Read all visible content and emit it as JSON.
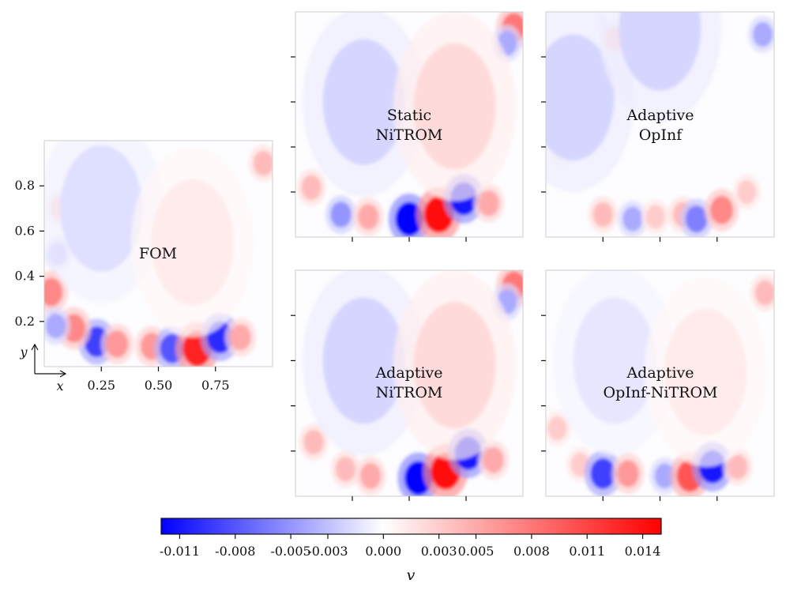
{
  "chart_data": {
    "type": "heatmap",
    "field_variable": "v",
    "colormap": "bwr",
    "colorbar": {
      "label": "v",
      "range": [
        -0.012,
        0.015
      ],
      "ticks": [
        "-0.011",
        "-0.008",
        "-0.005",
        "-0.003",
        "0.000",
        "0.003",
        "0.005",
        "0.008",
        "0.011",
        "0.014"
      ],
      "tick_values": [
        -0.011,
        -0.008,
        -0.005,
        -0.003,
        0.0,
        0.003,
        0.005,
        0.008,
        0.011,
        0.014
      ]
    },
    "axes": {
      "x_label": "x",
      "y_label": "y",
      "x_range": [
        0,
        1
      ],
      "y_range": [
        0,
        1
      ],
      "x_ticks": [
        "0.25",
        "0.50",
        "0.75"
      ],
      "x_tick_values": [
        0.25,
        0.5,
        0.75
      ],
      "y_ticks": [
        "0.2",
        "0.4",
        "0.6",
        "0.8"
      ],
      "y_tick_values": [
        0.2,
        0.4,
        0.6,
        0.8
      ]
    },
    "panels": [
      {
        "id": "fom",
        "title_lines": [
          "FOM"
        ],
        "blobs": [
          {
            "x": 0.23,
            "y": 0.11,
            "v": -0.009
          },
          {
            "x": 0.32,
            "y": 0.1,
            "v": 0.006
          },
          {
            "x": 0.13,
            "y": 0.17,
            "v": 0.007
          },
          {
            "x": 0.47,
            "y": 0.09,
            "v": 0.006
          },
          {
            "x": 0.56,
            "y": 0.08,
            "v": -0.008
          },
          {
            "x": 0.67,
            "y": 0.08,
            "v": 0.013
          },
          {
            "x": 0.77,
            "y": 0.13,
            "v": -0.01
          },
          {
            "x": 0.86,
            "y": 0.13,
            "v": 0.005
          },
          {
            "x": 0.03,
            "y": 0.33,
            "v": 0.007
          },
          {
            "x": 0.05,
            "y": 0.18,
            "v": -0.004
          },
          {
            "x": 0.06,
            "y": 0.5,
            "v": -0.003
          },
          {
            "x": 0.07,
            "y": 0.7,
            "v": 0.003
          },
          {
            "x": 0.96,
            "y": 0.9,
            "v": 0.004
          },
          {
            "x": 0.25,
            "y": 0.7,
            "v": -0.0015
          },
          {
            "x": 0.65,
            "y": 0.55,
            "v": 0.0012
          }
        ]
      },
      {
        "id": "static-nitrom",
        "title_lines": [
          "Static",
          "NiTROM"
        ],
        "blobs": [
          {
            "x": 0.2,
            "y": 0.1,
            "v": -0.005
          },
          {
            "x": 0.32,
            "y": 0.09,
            "v": 0.005
          },
          {
            "x": 0.5,
            "y": 0.08,
            "v": -0.012
          },
          {
            "x": 0.63,
            "y": 0.1,
            "v": 0.014
          },
          {
            "x": 0.74,
            "y": 0.17,
            "v": -0.011
          },
          {
            "x": 0.85,
            "y": 0.15,
            "v": 0.005
          },
          {
            "x": 0.07,
            "y": 0.22,
            "v": 0.004
          },
          {
            "x": 0.96,
            "y": 0.93,
            "v": 0.008
          },
          {
            "x": 0.93,
            "y": 0.86,
            "v": -0.004
          },
          {
            "x": 0.3,
            "y": 0.6,
            "v": -0.002
          },
          {
            "x": 0.7,
            "y": 0.58,
            "v": 0.0022
          }
        ]
      },
      {
        "id": "adaptive-opinf",
        "title_lines": [
          "Adaptive",
          "OpInf"
        ],
        "blobs": [
          {
            "x": 0.25,
            "y": 0.1,
            "v": 0.004
          },
          {
            "x": 0.38,
            "y": 0.08,
            "v": -0.004
          },
          {
            "x": 0.48,
            "y": 0.09,
            "v": 0.003
          },
          {
            "x": 0.6,
            "y": 0.1,
            "v": 0.004
          },
          {
            "x": 0.66,
            "y": 0.08,
            "v": -0.006
          },
          {
            "x": 0.77,
            "y": 0.12,
            "v": 0.007
          },
          {
            "x": 0.88,
            "y": 0.2,
            "v": 0.003
          },
          {
            "x": 0.08,
            "y": 0.4,
            "v": 0.003
          },
          {
            "x": 0.12,
            "y": 0.62,
            "v": -0.002
          },
          {
            "x": 0.3,
            "y": 0.88,
            "v": 0.003
          },
          {
            "x": 0.5,
            "y": 0.93,
            "v": -0.002
          },
          {
            "x": 0.95,
            "y": 0.9,
            "v": -0.004
          }
        ]
      },
      {
        "id": "adaptive-nitrom",
        "title_lines": [
          "Adaptive",
          "NiTROM"
        ],
        "blobs": [
          {
            "x": 0.22,
            "y": 0.12,
            "v": 0.004
          },
          {
            "x": 0.33,
            "y": 0.09,
            "v": 0.005
          },
          {
            "x": 0.54,
            "y": 0.08,
            "v": -0.012
          },
          {
            "x": 0.66,
            "y": 0.11,
            "v": 0.014
          },
          {
            "x": 0.76,
            "y": 0.19,
            "v": -0.011
          },
          {
            "x": 0.87,
            "y": 0.16,
            "v": 0.005
          },
          {
            "x": 0.08,
            "y": 0.24,
            "v": 0.004
          },
          {
            "x": 0.96,
            "y": 0.93,
            "v": 0.008
          },
          {
            "x": 0.93,
            "y": 0.86,
            "v": -0.004
          },
          {
            "x": 0.3,
            "y": 0.6,
            "v": -0.002
          },
          {
            "x": 0.7,
            "y": 0.58,
            "v": 0.0022
          }
        ]
      },
      {
        "id": "adaptive-opinf-nitrom",
        "title_lines": [
          "Adaptive",
          "OpInf-NiTROM"
        ],
        "blobs": [
          {
            "x": 0.15,
            "y": 0.14,
            "v": 0.003
          },
          {
            "x": 0.25,
            "y": 0.1,
            "v": -0.009
          },
          {
            "x": 0.36,
            "y": 0.1,
            "v": 0.006
          },
          {
            "x": 0.52,
            "y": 0.09,
            "v": -0.004
          },
          {
            "x": 0.63,
            "y": 0.09,
            "v": 0.01
          },
          {
            "x": 0.73,
            "y": 0.13,
            "v": -0.011
          },
          {
            "x": 0.84,
            "y": 0.13,
            "v": 0.004
          },
          {
            "x": 0.05,
            "y": 0.3,
            "v": 0.003
          },
          {
            "x": 0.96,
            "y": 0.9,
            "v": 0.004
          },
          {
            "x": 0.3,
            "y": 0.6,
            "v": -0.0012
          },
          {
            "x": 0.7,
            "y": 0.55,
            "v": 0.0012
          }
        ]
      }
    ]
  }
}
